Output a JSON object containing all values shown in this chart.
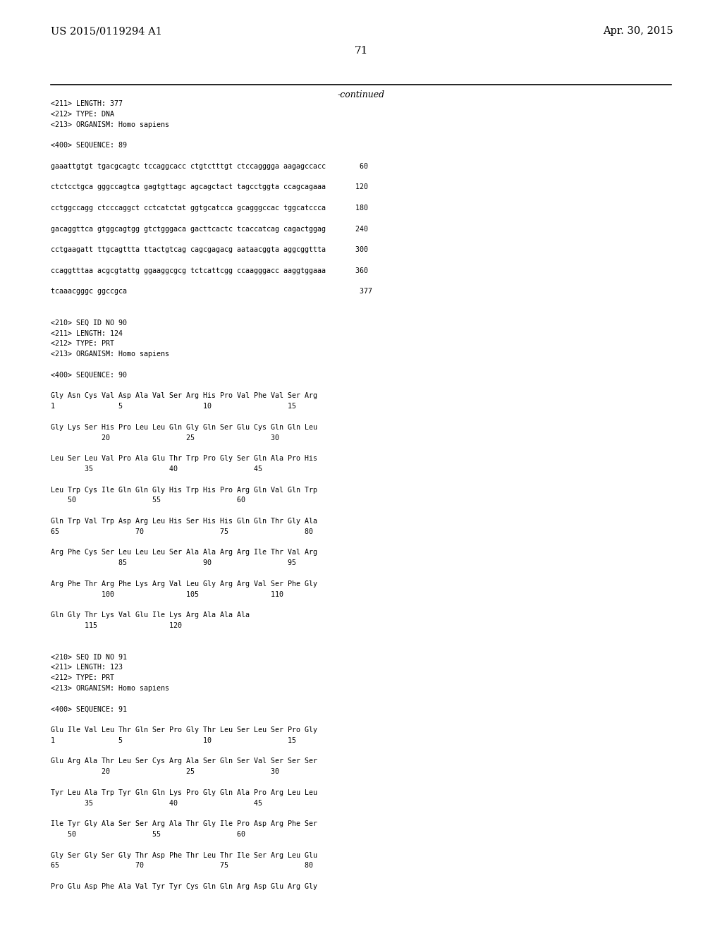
{
  "bg_color": "#ffffff",
  "header_left": "US 2015/0119294 A1",
  "header_right": "Apr. 30, 2015",
  "page_number": "71",
  "continued_label": "-continued",
  "font_family": "monospace",
  "header_font_family": "serif",
  "content": [
    "<211> LENGTH: 377",
    "<212> TYPE: DNA",
    "<213> ORGANISM: Homo sapiens",
    "",
    "<400> SEQUENCE: 89",
    "",
    "gaaattgtgt tgacgcagtc tccaggcacc ctgtctttgt ctccagggga aagagccacc        60",
    "",
    "ctctcctgca gggccagtca gagtgttagc agcagctact tagcctggta ccagcagaaa       120",
    "",
    "cctggccagg ctcccaggct cctcatctat ggtgcatcca gcagggccac tggcatccca       180",
    "",
    "gacaggttca gtggcagtgg gtctgggaca gacttcactc tcaccatcag cagactggag       240",
    "",
    "cctgaagatt ttgcagttta ttactgtcag cagcgagacg aataacggta aggcggttta       300",
    "",
    "ccaggtttaa acgcgtattg ggaaggcgcg tctcattcgg ccaagggacc aaggtggaaa       360",
    "",
    "tcaaacgggc ggccgca                                                       377",
    "",
    "",
    "<210> SEQ ID NO 90",
    "<211> LENGTH: 124",
    "<212> TYPE: PRT",
    "<213> ORGANISM: Homo sapiens",
    "",
    "<400> SEQUENCE: 90",
    "",
    "Gly Asn Cys Val Asp Ala Val Ser Arg His Pro Val Phe Val Ser Arg",
    "1               5                   10                  15",
    "",
    "Gly Lys Ser His Pro Leu Leu Gln Gly Gln Ser Glu Cys Gln Gln Leu",
    "            20                  25                  30",
    "",
    "Leu Ser Leu Val Pro Ala Glu Thr Trp Pro Gly Ser Gln Ala Pro His",
    "        35                  40                  45",
    "",
    "Leu Trp Cys Ile Gln Gln Gly His Trp His Pro Arg Gln Val Gln Trp",
    "    50                  55                  60",
    "",
    "Gln Trp Val Trp Asp Arg Leu His Ser His His Gln Gln Thr Gly Ala",
    "65                  70                  75                  80",
    "",
    "Arg Phe Cys Ser Leu Leu Leu Ser Ala Ala Arg Arg Ile Thr Val Arg",
    "                85                  90                  95",
    "",
    "Arg Phe Thr Arg Phe Lys Arg Val Leu Gly Arg Arg Val Ser Phe Gly",
    "            100                 105                 110",
    "",
    "Gln Gly Thr Lys Val Glu Ile Lys Arg Ala Ala Ala",
    "        115                 120",
    "",
    "",
    "<210> SEQ ID NO 91",
    "<211> LENGTH: 123",
    "<212> TYPE: PRT",
    "<213> ORGANISM: Homo sapiens",
    "",
    "<400> SEQUENCE: 91",
    "",
    "Glu Ile Val Leu Thr Gln Ser Pro Gly Thr Leu Ser Leu Ser Pro Gly",
    "1               5                   10                  15",
    "",
    "Glu Arg Ala Thr Leu Ser Cys Arg Ala Ser Gln Ser Val Ser Ser Ser",
    "            20                  25                  30",
    "",
    "Tyr Leu Ala Trp Tyr Gln Gln Lys Pro Gly Gln Ala Pro Arg Leu Leu",
    "        35                  40                  45",
    "",
    "Ile Tyr Gly Ala Ser Ser Arg Ala Thr Gly Ile Pro Asp Arg Phe Ser",
    "    50                  55                  60",
    "",
    "Gly Ser Gly Ser Gly Thr Asp Phe Thr Leu Thr Ile Ser Arg Leu Glu",
    "65                  70                  75                  80",
    "",
    "Pro Glu Asp Phe Ala Val Tyr Tyr Cys Gln Gln Arg Asp Glu Arg Gly"
  ]
}
